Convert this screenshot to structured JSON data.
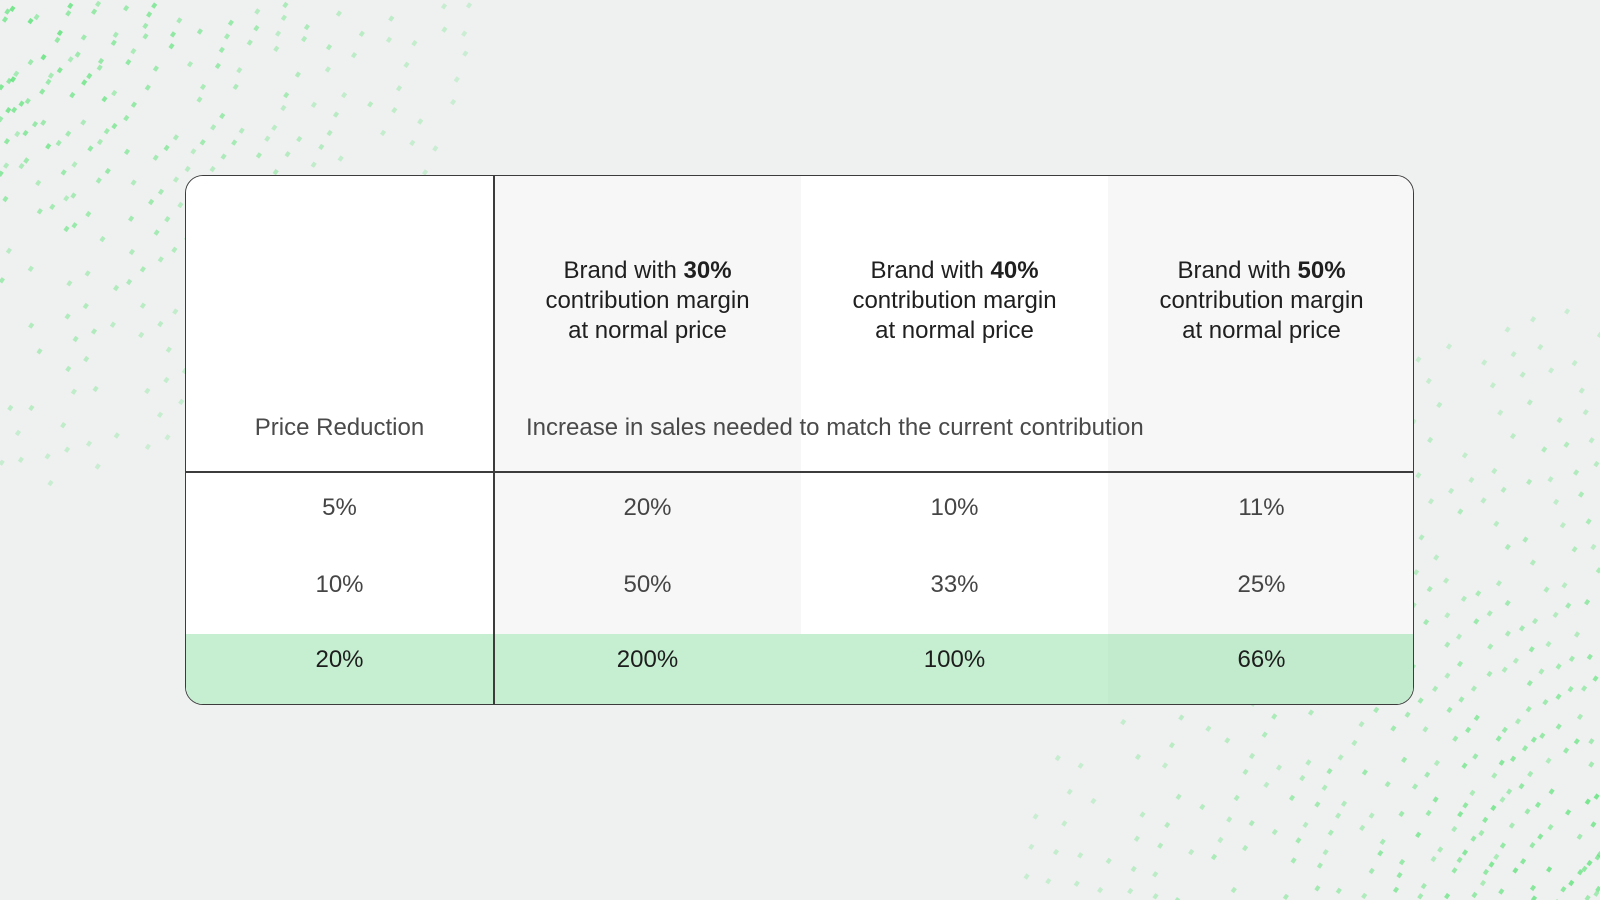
{
  "table": {
    "row_header_title": "Price Reduction",
    "body_caption": "Increase in sales needed to match the current contribution",
    "columns": [
      {
        "prefix": "Brand with ",
        "margin": "30%",
        "line2": "contribution margin",
        "line3": "at normal price"
      },
      {
        "prefix": "Brand with ",
        "margin": "40%",
        "line2": "contribution margin",
        "line3": "at normal price"
      },
      {
        "prefix": "Brand with ",
        "margin": "50%",
        "line2": "contribution margin",
        "line3": "at normal price"
      }
    ],
    "rows": [
      {
        "reduction": "5%",
        "values": [
          "20%",
          "10%",
          "11%"
        ]
      },
      {
        "reduction": "10%",
        "values": [
          "50%",
          "33%",
          "25%"
        ]
      },
      {
        "reduction": "20%",
        "values": [
          "200%",
          "100%",
          "66%"
        ]
      }
    ]
  },
  "colors": {
    "background": "#eff1f0",
    "accent_green": "#5ee37a",
    "highlight_row": "#c6efd1",
    "border": "#3c3c3c"
  }
}
